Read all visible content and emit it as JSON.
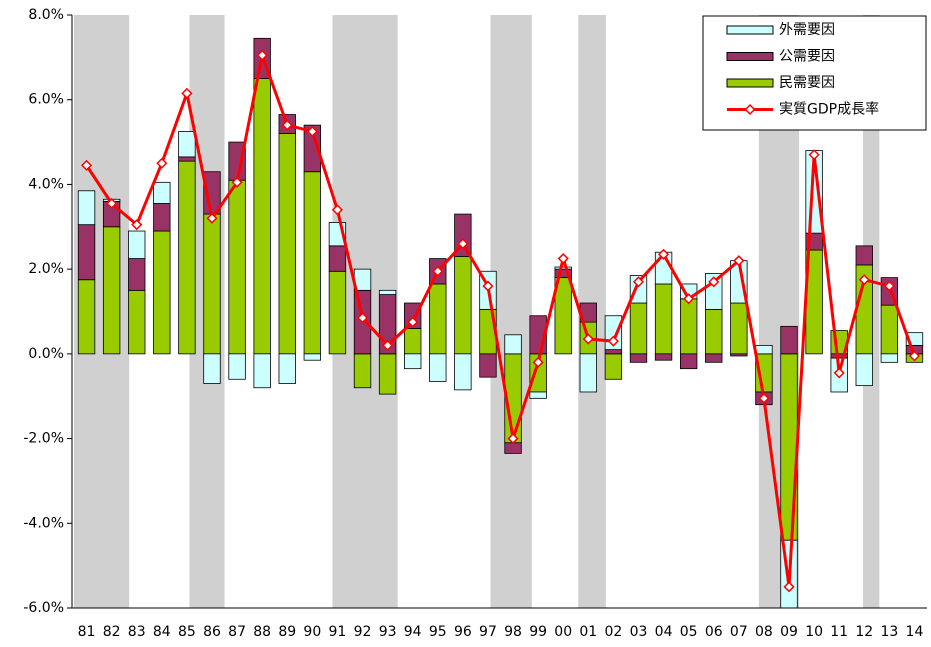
{
  "chart_data": {
    "type": "bar",
    "categories": [
      "81",
      "82",
      "83",
      "84",
      "85",
      "86",
      "87",
      "88",
      "89",
      "90",
      "91",
      "92",
      "93",
      "94",
      "95",
      "96",
      "97",
      "98",
      "99",
      "00",
      "01",
      "02",
      "03",
      "04",
      "05",
      "06",
      "07",
      "08",
      "09",
      "10",
      "11",
      "12",
      "13",
      "14"
    ],
    "series": [
      {
        "name": "外需要因",
        "color": "#ccffff",
        "values": [
          0.8,
          0.05,
          0.65,
          0.5,
          0.6,
          -0.7,
          -0.6,
          -0.8,
          -0.7,
          -0.15,
          0.55,
          0.5,
          0.1,
          -0.35,
          -0.65,
          -0.85,
          0.9,
          0.45,
          -0.15,
          0.05,
          -0.9,
          0.8,
          0.65,
          0.75,
          0.35,
          0.85,
          1.0,
          0.2,
          -1.8,
          1.95,
          -0.8,
          -0.75,
          -0.2,
          0.3
        ]
      },
      {
        "name": "公需要因",
        "color": "#993366",
        "values": [
          1.3,
          0.6,
          0.75,
          0.65,
          0.1,
          1.0,
          0.9,
          0.95,
          0.45,
          1.1,
          0.6,
          1.5,
          1.4,
          0.6,
          0.6,
          1.0,
          -0.55,
          -0.25,
          0.9,
          0.2,
          0.45,
          0.1,
          -0.2,
          -0.15,
          -0.35,
          -0.2,
          -0.05,
          -0.3,
          0.65,
          0.4,
          -0.1,
          0.45,
          0.65,
          0.2
        ]
      },
      {
        "name": "民需要因",
        "color": "#99cc00",
        "values": [
          1.75,
          3.0,
          1.5,
          2.9,
          4.55,
          3.3,
          4.1,
          6.5,
          5.2,
          4.3,
          1.95,
          -0.8,
          -0.95,
          0.6,
          1.65,
          2.3,
          1.05,
          -2.1,
          -0.9,
          1.8,
          0.75,
          -0.6,
          1.2,
          1.65,
          1.3,
          1.05,
          1.2,
          -0.9,
          -4.4,
          2.45,
          0.55,
          2.1,
          1.15,
          -0.2
        ]
      }
    ],
    "line_series": {
      "name": "実質GDP成長率",
      "color": "#ff0000",
      "values": [
        4.45,
        3.55,
        3.05,
        4.5,
        6.15,
        3.2,
        4.05,
        7.05,
        5.4,
        5.25,
        3.4,
        0.85,
        0.2,
        0.75,
        1.95,
        2.6,
        1.6,
        -2.0,
        -0.2,
        2.25,
        0.35,
        0.3,
        1.7,
        2.35,
        1.3,
        1.7,
        2.2,
        -1.05,
        -5.5,
        4.7,
        -0.45,
        1.75,
        1.6,
        -0.05
      ]
    },
    "recession_periods": [
      [
        0,
        2.2
      ],
      [
        4.6,
        6.0
      ],
      [
        10.3,
        12.9
      ],
      [
        16.6,
        18.25
      ],
      [
        20.1,
        21.2
      ],
      [
        27.3,
        28.9
      ],
      [
        31.45,
        32.1
      ]
    ],
    "shade_color": "#d0d0d0",
    "ylim": [
      -6,
      8
    ],
    "yticks": [
      {
        "value": -6,
        "label": "-6.0%"
      },
      {
        "value": -4,
        "label": "-4.0%"
      },
      {
        "value": -2,
        "label": "-2.0%"
      },
      {
        "value": 0,
        "label": "0.0%"
      },
      {
        "value": 2,
        "label": "2.0%"
      },
      {
        "value": 4,
        "label": "4.0%"
      },
      {
        "value": 6,
        "label": "6.0%"
      },
      {
        "value": 8,
        "label": "8.0%"
      }
    ],
    "legend": "top-right"
  }
}
